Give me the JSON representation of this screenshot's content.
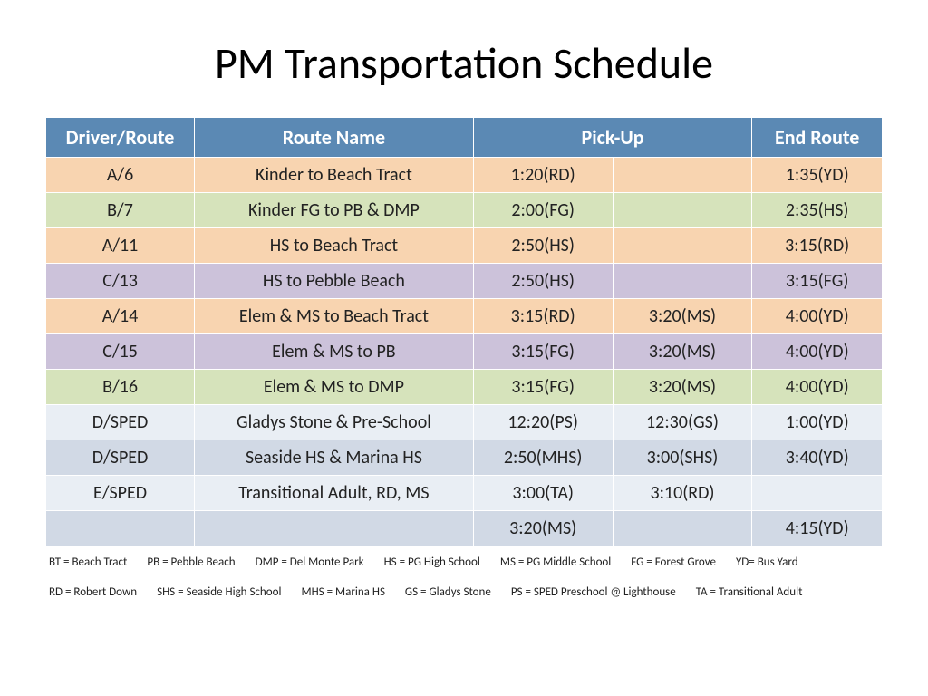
{
  "title": "PM Transportation Schedule",
  "table": {
    "header_bg": "#5b89b4",
    "header_color": "#ffffff",
    "columns": [
      {
        "label": "Driver/Route",
        "width": "16%"
      },
      {
        "label": "Route Name",
        "width": "30%"
      },
      {
        "label": "Pick-Up",
        "width": "30%",
        "colspan": 2
      },
      {
        "label": "End Route",
        "width": "14%"
      }
    ],
    "col_widths": [
      "16%",
      "30%",
      "15%",
      "15%",
      "14%"
    ],
    "rows": [
      {
        "bg": "#f8d4b0",
        "cells": [
          "A/6",
          "Kinder to Beach Tract",
          "1:20(RD)",
          "",
          "1:35(YD)"
        ]
      },
      {
        "bg": "#d6e3bb",
        "cells": [
          "B/7",
          "Kinder FG to PB & DMP",
          "2:00(FG)",
          "",
          "2:35(HS)"
        ]
      },
      {
        "bg": "#f8d4b0",
        "cells": [
          "A/11",
          "HS to Beach Tract",
          "2:50(HS)",
          "",
          "3:15(RD)"
        ]
      },
      {
        "bg": "#ccc2da",
        "cells": [
          "C/13",
          "HS to Pebble Beach",
          "2:50(HS)",
          "",
          "3:15(FG)"
        ]
      },
      {
        "bg": "#f8d4b0",
        "cells": [
          "A/14",
          "Elem & MS to Beach Tract",
          "3:15(RD)",
          "3:20(MS)",
          "4:00(YD)"
        ]
      },
      {
        "bg": "#ccc2da",
        "cells": [
          "C/15",
          "Elem & MS to PB",
          "3:15(FG)",
          "3:20(MS)",
          "4:00(YD)"
        ]
      },
      {
        "bg": "#d6e3bb",
        "cells": [
          "B/16",
          "Elem & MS to DMP",
          "3:15(FG)",
          "3:20(MS)",
          "4:00(YD)"
        ]
      },
      {
        "bg": "#e9eef4",
        "cells": [
          "D/SPED",
          "Gladys Stone & Pre-School",
          "12:20(PS)",
          "12:30(GS)",
          "1:00(YD)"
        ]
      },
      {
        "bg": "#d1d9e5",
        "cells": [
          "D/SPED",
          "Seaside HS & Marina HS",
          "2:50(MHS)",
          "3:00(SHS)",
          "3:40(YD)"
        ]
      },
      {
        "bg": "#e9eef4",
        "cells": [
          "E/SPED",
          "Transitional Adult, RD, MS",
          "3:00(TA)",
          "3:10(RD)",
          ""
        ]
      },
      {
        "bg": "#d1d9e5",
        "cells": [
          "",
          "",
          "3:20(MS)",
          "",
          "4:15(YD)"
        ]
      }
    ]
  },
  "legend": [
    "BT = Beach Tract",
    "PB = Pebble Beach",
    "DMP = Del Monte Park",
    "HS = PG High School",
    "MS = PG Middle School",
    "FG = Forest Grove",
    "YD= Bus Yard",
    "RD = Robert Down",
    "SHS = Seaside High School",
    "MHS = Marina HS",
    "GS = Gladys Stone",
    "PS = SPED Preschool @ Lighthouse",
    "TA = Transitional Adult"
  ]
}
